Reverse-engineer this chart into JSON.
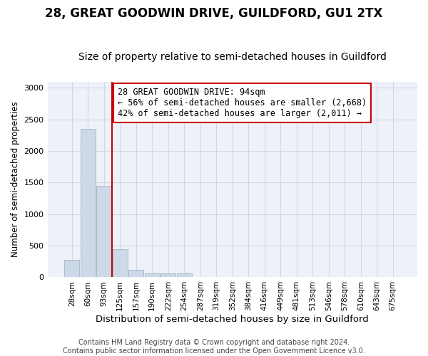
{
  "title1": "28, GREAT GOODWIN DRIVE, GUILDFORD, GU1 2TX",
  "title2": "Size of property relative to semi-detached houses in Guildford",
  "xlabel": "Distribution of semi-detached houses by size in Guildford",
  "ylabel": "Number of semi-detached properties",
  "footnote": "Contains HM Land Registry data © Crown copyright and database right 2024.\nContains public sector information licensed under the Open Government Licence v3.0.",
  "bins": [
    "28sqm",
    "60sqm",
    "93sqm",
    "125sqm",
    "157sqm",
    "190sqm",
    "222sqm",
    "254sqm",
    "287sqm",
    "319sqm",
    "352sqm",
    "384sqm",
    "416sqm",
    "449sqm",
    "481sqm",
    "513sqm",
    "546sqm",
    "578sqm",
    "610sqm",
    "643sqm",
    "675sqm"
  ],
  "values": [
    280,
    2350,
    1450,
    450,
    120,
    60,
    60,
    60,
    0,
    0,
    0,
    0,
    0,
    0,
    0,
    0,
    0,
    0,
    0,
    0,
    0
  ],
  "bar_color": "#ccd9e8",
  "bar_edge_color": "#9aaabb",
  "vline_color": "#cc0000",
  "vline_xindex": 2.5,
  "annotation_text_line1": "28 GREAT GOODWIN DRIVE: 94sqm",
  "annotation_text_line2": "← 56% of semi-detached houses are smaller (2,668)",
  "annotation_text_line3": "42% of semi-detached houses are larger (2,011) →",
  "annotation_color": "#cc0000",
  "ylim": [
    0,
    3100
  ],
  "yticks": [
    0,
    500,
    1000,
    1500,
    2000,
    2500,
    3000
  ],
  "title1_fontsize": 12,
  "title2_fontsize": 10,
  "xlabel_fontsize": 9.5,
  "ylabel_fontsize": 8.5,
  "annotation_fontsize": 8.5,
  "footnote_fontsize": 7,
  "grid_color": "#d0d8e8",
  "bg_color": "#eef2f8"
}
